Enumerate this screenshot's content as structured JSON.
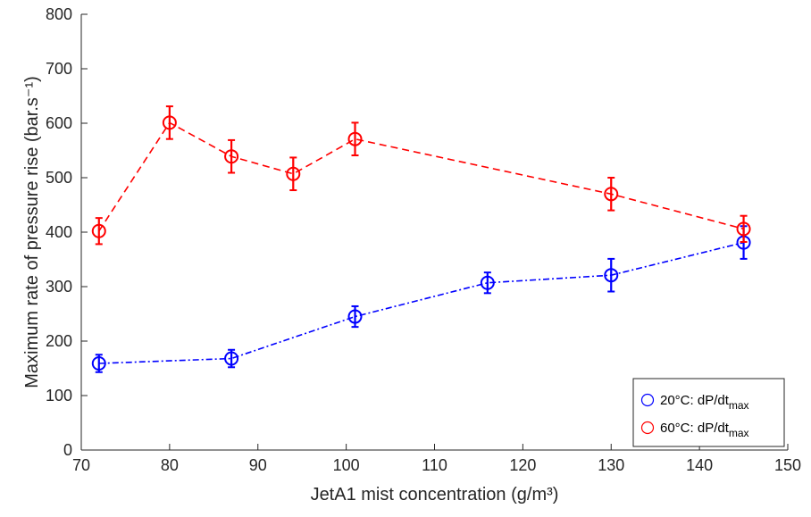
{
  "chart_data": {
    "type": "line",
    "title": "",
    "xlabel": "JetA1 mist concentration (g/m³)",
    "ylabel": "Maximum rate of pressure rise (bar.s⁻¹)",
    "xlim": [
      70,
      150
    ],
    "ylim": [
      0,
      800
    ],
    "xticks": [
      70,
      80,
      90,
      100,
      110,
      120,
      130,
      140,
      150
    ],
    "yticks": [
      0,
      100,
      200,
      300,
      400,
      500,
      600,
      700,
      800
    ],
    "grid": false,
    "legend_position": "bottom-right",
    "series": [
      {
        "name": "20°C: dP/dtmax",
        "color": "#0000ff",
        "linestyle": "dash-dot",
        "marker": "circle",
        "x": [
          72,
          87,
          101,
          116,
          130,
          145
        ],
        "y": [
          159,
          168,
          245,
          307,
          321,
          381
        ],
        "yerr": [
          16,
          16,
          19,
          19,
          30,
          30
        ]
      },
      {
        "name": "60°C: dP/dtmax",
        "color": "#ff0000",
        "linestyle": "dashed",
        "marker": "circle",
        "x": [
          72,
          80,
          87,
          94,
          101,
          130,
          145
        ],
        "y": [
          402,
          601,
          539,
          507,
          571,
          470,
          406
        ],
        "yerr": [
          24,
          30,
          30,
          30,
          30,
          30,
          24
        ]
      }
    ]
  }
}
